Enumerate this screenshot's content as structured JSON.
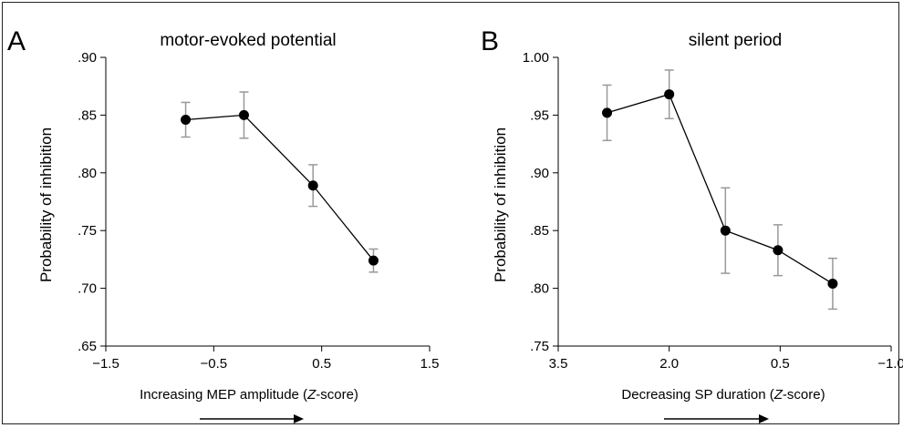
{
  "chart_data": [
    {
      "panel_letter": "A",
      "type": "line",
      "title": "motor-evoked potential",
      "xlabel": "Increasing MEP amplitude (Z-score)",
      "ylabel": "Probability of inhibition",
      "xlim": [
        -1.5,
        1.5
      ],
      "ylim": [
        0.65,
        0.9
      ],
      "xticks": [
        -1.5,
        -0.5,
        0.5,
        1.5
      ],
      "xtick_labels": [
        "−1.5",
        "−0.5",
        "0.5",
        "1.5"
      ],
      "yticks": [
        0.65,
        0.7,
        0.75,
        0.8,
        0.85,
        0.9
      ],
      "ytick_labels": [
        ".65",
        ".70",
        ".75",
        ".80",
        ".85",
        ".90"
      ],
      "x": [
        -0.76,
        -0.22,
        0.42,
        0.98
      ],
      "y": [
        0.846,
        0.85,
        0.789,
        0.724
      ],
      "err": [
        0.015,
        0.02,
        0.018,
        0.01
      ],
      "arrow": "right",
      "grid": false
    },
    {
      "panel_letter": "B",
      "type": "line",
      "title": "silent period",
      "xlabel": "Decreasing SP duration (Z-score)",
      "ylabel": "Probability of inhibition",
      "xlim": [
        3.5,
        -1.0
      ],
      "ylim": [
        0.75,
        1.0
      ],
      "xticks": [
        3.5,
        2.0,
        0.5,
        -1.0
      ],
      "xtick_labels": [
        "3.5",
        "2.0",
        "0.5",
        "−1.0"
      ],
      "yticks": [
        0.75,
        0.8,
        0.85,
        0.9,
        0.95,
        1.0
      ],
      "ytick_labels": [
        ".75",
        ".80",
        ".85",
        ".90",
        ".95",
        "1.00"
      ],
      "x": [
        2.84,
        2.0,
        1.24,
        0.53,
        -0.21
      ],
      "y": [
        0.952,
        0.968,
        0.85,
        0.833,
        0.804
      ],
      "err": [
        0.024,
        0.021,
        0.037,
        0.022,
        0.022
      ],
      "arrow": "right",
      "grid": false
    }
  ]
}
